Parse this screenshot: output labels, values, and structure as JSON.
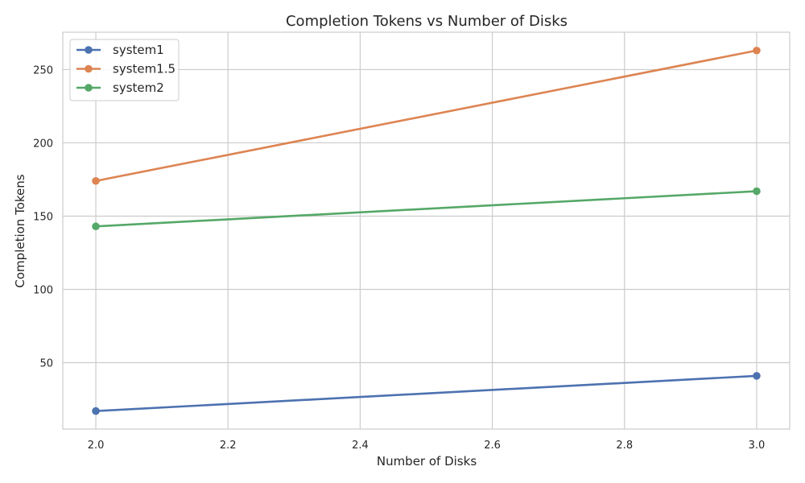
{
  "chart_data": {
    "type": "line",
    "title": "Completion Tokens vs Number of Disks",
    "xlabel": "Number of Disks",
    "ylabel": "Completion Tokens",
    "x": [
      2.0,
      3.0
    ],
    "xlim": [
      1.95,
      3.05
    ],
    "ylim": [
      4.7,
      275.5
    ],
    "xticks": [
      "2.0",
      "2.2",
      "2.4",
      "2.6",
      "2.8",
      "3.0"
    ],
    "yticks": [
      "50",
      "100",
      "150",
      "200",
      "250"
    ],
    "grid": true,
    "legend_position": "top-left",
    "series": [
      {
        "name": "system1",
        "values": [
          17,
          41
        ],
        "color": "#4c72b0"
      },
      {
        "name": "system1.5",
        "values": [
          174,
          263
        ],
        "color": "#dd8452"
      },
      {
        "name": "system2",
        "values": [
          143,
          167
        ],
        "color": "#55a868"
      }
    ]
  }
}
